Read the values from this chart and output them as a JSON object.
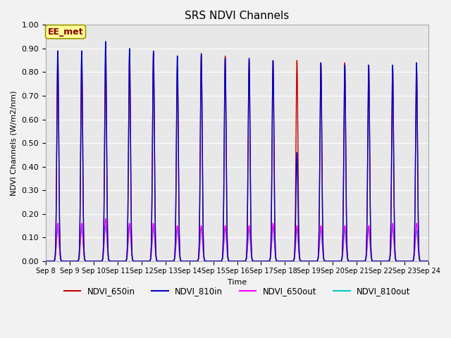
{
  "title": "SRS NDVI Channels",
  "ylabel": "NDVI Channels (W/m2/nm)",
  "xlabel": "Time",
  "ylim": [
    0.0,
    1.0
  ],
  "background_color": "#e8e8e8",
  "grid_color": "#ffffff",
  "annotation_label": "EE_met",
  "annotation_box_color": "#ffff99",
  "annotation_text_color": "#880000",
  "series": [
    {
      "name": "NDVI_650in",
      "color": "#cc0000",
      "lw": 1.0
    },
    {
      "name": "NDVI_810in",
      "color": "#0000cc",
      "lw": 1.0
    },
    {
      "name": "NDVI_650out",
      "color": "#ff00ff",
      "lw": 1.0
    },
    {
      "name": "NDVI_810out",
      "color": "#00cccc",
      "lw": 1.0
    }
  ],
  "num_days": 16,
  "start_day": 8,
  "peak_650in": [
    0.86,
    0.86,
    0.87,
    0.88,
    0.88,
    0.82,
    0.87,
    0.87,
    0.85,
    0.85,
    0.85,
    0.84,
    0.84,
    0.83,
    0.82,
    0.83
  ],
  "peak_810in": [
    0.89,
    0.89,
    0.93,
    0.9,
    0.89,
    0.87,
    0.88,
    0.86,
    0.86,
    0.85,
    0.46,
    0.84,
    0.83,
    0.83,
    0.83,
    0.84
  ],
  "peak_650out": [
    0.16,
    0.16,
    0.18,
    0.16,
    0.16,
    0.15,
    0.15,
    0.15,
    0.15,
    0.16,
    0.15,
    0.15,
    0.15,
    0.15,
    0.16,
    0.16
  ],
  "peak_810out": [
    0.14,
    0.14,
    0.15,
    0.15,
    0.14,
    0.13,
    0.14,
    0.14,
    0.13,
    0.14,
    0.13,
    0.13,
    0.13,
    0.14,
    0.14,
    0.13
  ],
  "figsize": [
    6.4,
    4.8
  ],
  "dpi": 100
}
